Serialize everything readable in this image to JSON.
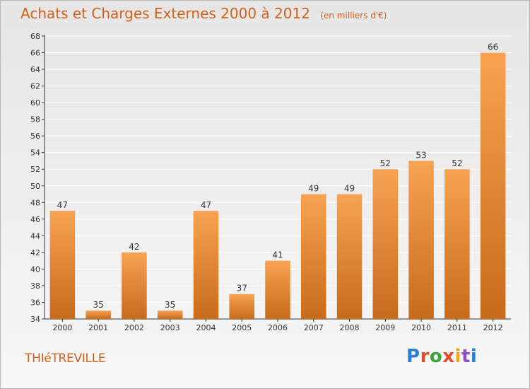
{
  "header": {
    "title": "Achats et Charges Externes 2000 à 2012",
    "unit": "(en milliers d'€)"
  },
  "footer": {
    "commune": "THIéTREVILLE",
    "logo": {
      "letters": [
        "P",
        "r",
        "o",
        "x",
        "i",
        "t",
        "i"
      ]
    }
  },
  "colors": {
    "bar_top": "#f7a352",
    "bar_bottom": "#c86a1c",
    "title": "#d2601a",
    "axis": "#333333"
  },
  "chart_data": {
    "type": "bar",
    "title": "Achats et Charges Externes 2000 à 2012",
    "subtitle": "(en milliers d'€)",
    "xlabel": "",
    "ylabel": "",
    "categories": [
      "2000",
      "2001",
      "2002",
      "2003",
      "2004",
      "2005",
      "2006",
      "2007",
      "2008",
      "2009",
      "2010",
      "2011",
      "2012"
    ],
    "series": [
      {
        "values": [
          47,
          35,
          42,
          35,
          47,
          37,
          41,
          49,
          49,
          52,
          53,
          52,
          66
        ]
      }
    ],
    "ylim": [
      34,
      68
    ],
    "yticks": [
      34,
      36,
      38,
      40,
      42,
      44,
      46,
      48,
      50,
      52,
      54,
      56,
      58,
      60,
      62,
      64,
      66,
      68
    ],
    "grid": true,
    "data_labels": true
  }
}
